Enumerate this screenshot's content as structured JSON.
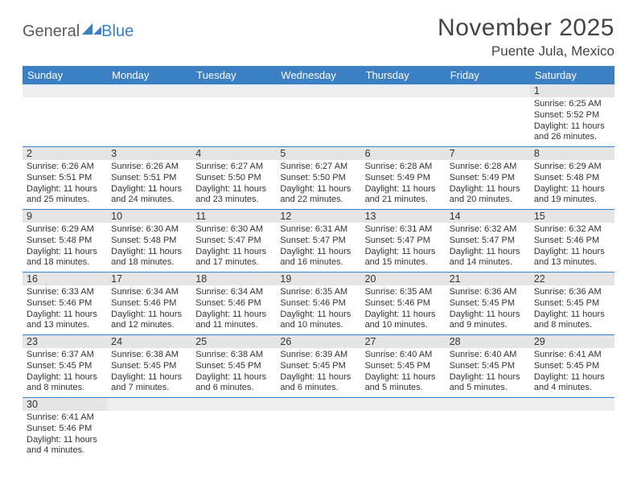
{
  "logo": {
    "part1": "General",
    "part2": "Blue"
  },
  "title": "November 2025",
  "location": "Puente Jula, Mexico",
  "header_bg": "#3b7fc4",
  "header_fg": "#ffffff",
  "daynum_bg": "#e5e5e5",
  "divider_color": "#3b7fc4",
  "dayNames": [
    "Sunday",
    "Monday",
    "Tuesday",
    "Wednesday",
    "Thursday",
    "Friday",
    "Saturday"
  ],
  "weeks": [
    [
      {
        "n": "",
        "lines": []
      },
      {
        "n": "",
        "lines": []
      },
      {
        "n": "",
        "lines": []
      },
      {
        "n": "",
        "lines": []
      },
      {
        "n": "",
        "lines": []
      },
      {
        "n": "",
        "lines": []
      },
      {
        "n": "1",
        "lines": [
          "Sunrise: 6:25 AM",
          "Sunset: 5:52 PM",
          "Daylight: 11 hours and 26 minutes."
        ]
      }
    ],
    [
      {
        "n": "2",
        "lines": [
          "Sunrise: 6:26 AM",
          "Sunset: 5:51 PM",
          "Daylight: 11 hours and 25 minutes."
        ]
      },
      {
        "n": "3",
        "lines": [
          "Sunrise: 6:26 AM",
          "Sunset: 5:51 PM",
          "Daylight: 11 hours and 24 minutes."
        ]
      },
      {
        "n": "4",
        "lines": [
          "Sunrise: 6:27 AM",
          "Sunset: 5:50 PM",
          "Daylight: 11 hours and 23 minutes."
        ]
      },
      {
        "n": "5",
        "lines": [
          "Sunrise: 6:27 AM",
          "Sunset: 5:50 PM",
          "Daylight: 11 hours and 22 minutes."
        ]
      },
      {
        "n": "6",
        "lines": [
          "Sunrise: 6:28 AM",
          "Sunset: 5:49 PM",
          "Daylight: 11 hours and 21 minutes."
        ]
      },
      {
        "n": "7",
        "lines": [
          "Sunrise: 6:28 AM",
          "Sunset: 5:49 PM",
          "Daylight: 11 hours and 20 minutes."
        ]
      },
      {
        "n": "8",
        "lines": [
          "Sunrise: 6:29 AM",
          "Sunset: 5:48 PM",
          "Daylight: 11 hours and 19 minutes."
        ]
      }
    ],
    [
      {
        "n": "9",
        "lines": [
          "Sunrise: 6:29 AM",
          "Sunset: 5:48 PM",
          "Daylight: 11 hours and 18 minutes."
        ]
      },
      {
        "n": "10",
        "lines": [
          "Sunrise: 6:30 AM",
          "Sunset: 5:48 PM",
          "Daylight: 11 hours and 18 minutes."
        ]
      },
      {
        "n": "11",
        "lines": [
          "Sunrise: 6:30 AM",
          "Sunset: 5:47 PM",
          "Daylight: 11 hours and 17 minutes."
        ]
      },
      {
        "n": "12",
        "lines": [
          "Sunrise: 6:31 AM",
          "Sunset: 5:47 PM",
          "Daylight: 11 hours and 16 minutes."
        ]
      },
      {
        "n": "13",
        "lines": [
          "Sunrise: 6:31 AM",
          "Sunset: 5:47 PM",
          "Daylight: 11 hours and 15 minutes."
        ]
      },
      {
        "n": "14",
        "lines": [
          "Sunrise: 6:32 AM",
          "Sunset: 5:47 PM",
          "Daylight: 11 hours and 14 minutes."
        ]
      },
      {
        "n": "15",
        "lines": [
          "Sunrise: 6:32 AM",
          "Sunset: 5:46 PM",
          "Daylight: 11 hours and 13 minutes."
        ]
      }
    ],
    [
      {
        "n": "16",
        "lines": [
          "Sunrise: 6:33 AM",
          "Sunset: 5:46 PM",
          "Daylight: 11 hours and 13 minutes."
        ]
      },
      {
        "n": "17",
        "lines": [
          "Sunrise: 6:34 AM",
          "Sunset: 5:46 PM",
          "Daylight: 11 hours and 12 minutes."
        ]
      },
      {
        "n": "18",
        "lines": [
          "Sunrise: 6:34 AM",
          "Sunset: 5:46 PM",
          "Daylight: 11 hours and 11 minutes."
        ]
      },
      {
        "n": "19",
        "lines": [
          "Sunrise: 6:35 AM",
          "Sunset: 5:46 PM",
          "Daylight: 11 hours and 10 minutes."
        ]
      },
      {
        "n": "20",
        "lines": [
          "Sunrise: 6:35 AM",
          "Sunset: 5:46 PM",
          "Daylight: 11 hours and 10 minutes."
        ]
      },
      {
        "n": "21",
        "lines": [
          "Sunrise: 6:36 AM",
          "Sunset: 5:45 PM",
          "Daylight: 11 hours and 9 minutes."
        ]
      },
      {
        "n": "22",
        "lines": [
          "Sunrise: 6:36 AM",
          "Sunset: 5:45 PM",
          "Daylight: 11 hours and 8 minutes."
        ]
      }
    ],
    [
      {
        "n": "23",
        "lines": [
          "Sunrise: 6:37 AM",
          "Sunset: 5:45 PM",
          "Daylight: 11 hours and 8 minutes."
        ]
      },
      {
        "n": "24",
        "lines": [
          "Sunrise: 6:38 AM",
          "Sunset: 5:45 PM",
          "Daylight: 11 hours and 7 minutes."
        ]
      },
      {
        "n": "25",
        "lines": [
          "Sunrise: 6:38 AM",
          "Sunset: 5:45 PM",
          "Daylight: 11 hours and 6 minutes."
        ]
      },
      {
        "n": "26",
        "lines": [
          "Sunrise: 6:39 AM",
          "Sunset: 5:45 PM",
          "Daylight: 11 hours and 6 minutes."
        ]
      },
      {
        "n": "27",
        "lines": [
          "Sunrise: 6:40 AM",
          "Sunset: 5:45 PM",
          "Daylight: 11 hours and 5 minutes."
        ]
      },
      {
        "n": "28",
        "lines": [
          "Sunrise: 6:40 AM",
          "Sunset: 5:45 PM",
          "Daylight: 11 hours and 5 minutes."
        ]
      },
      {
        "n": "29",
        "lines": [
          "Sunrise: 6:41 AM",
          "Sunset: 5:45 PM",
          "Daylight: 11 hours and 4 minutes."
        ]
      }
    ],
    [
      {
        "n": "30",
        "lines": [
          "Sunrise: 6:41 AM",
          "Sunset: 5:46 PM",
          "Daylight: 11 hours and 4 minutes."
        ]
      },
      {
        "n": "",
        "lines": []
      },
      {
        "n": "",
        "lines": []
      },
      {
        "n": "",
        "lines": []
      },
      {
        "n": "",
        "lines": []
      },
      {
        "n": "",
        "lines": []
      },
      {
        "n": "",
        "lines": []
      }
    ]
  ]
}
